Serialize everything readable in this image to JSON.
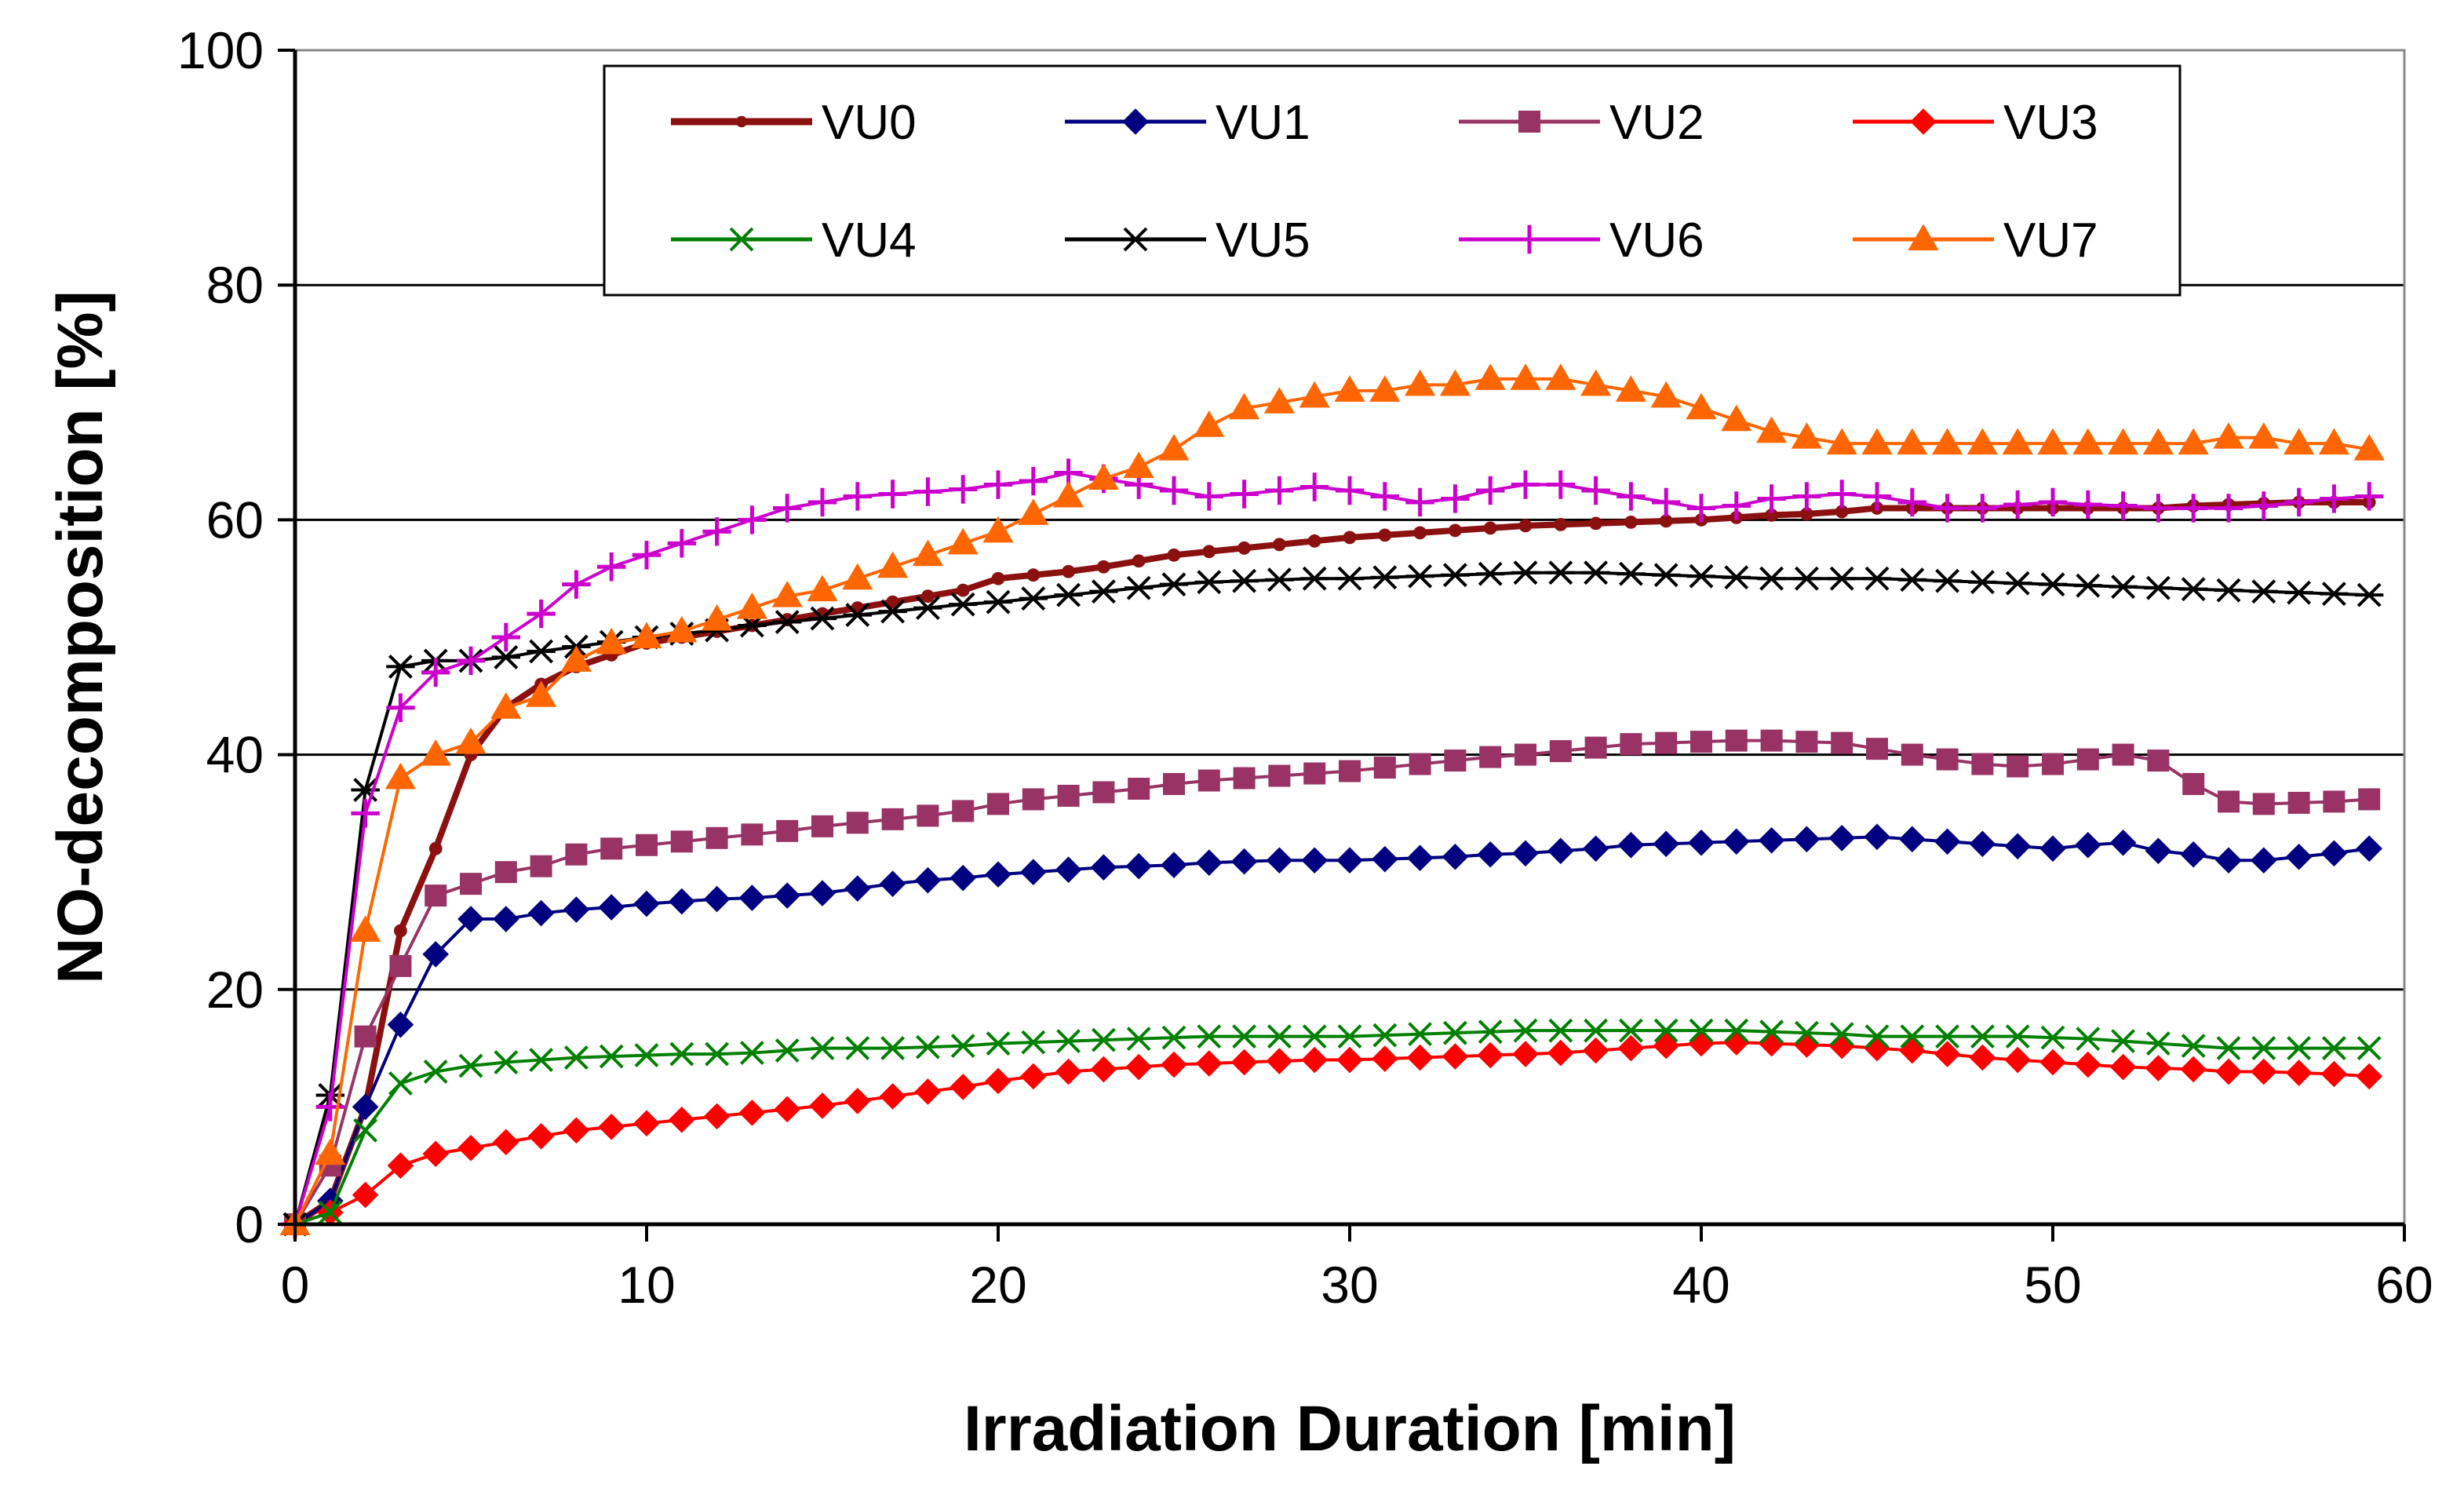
{
  "chart_data": {
    "type": "line",
    "title": "",
    "xlabel": "Irradiation Duration [min]",
    "ylabel": "NO-decomposition [%]",
    "xlim": [
      0,
      60
    ],
    "ylim": [
      0,
      100
    ],
    "xticks": [
      0,
      10,
      20,
      30,
      40,
      50,
      60
    ],
    "yticks": [
      0,
      20,
      40,
      60,
      80,
      100
    ],
    "grid": "horizontal",
    "legend_position": "top-center",
    "x": [
      0,
      1,
      2,
      3,
      4,
      5,
      6,
      7,
      8,
      9,
      10,
      11,
      12,
      13,
      14,
      15,
      16,
      17,
      18,
      19,
      20,
      21,
      22,
      23,
      24,
      25,
      26,
      27,
      28,
      29,
      30,
      31,
      32,
      33,
      34,
      35,
      36,
      37,
      38,
      39,
      40,
      41,
      42,
      43,
      44,
      45,
      46,
      47,
      48,
      49,
      50,
      51,
      52,
      53,
      54,
      55,
      56,
      57,
      58,
      59
    ],
    "series": [
      {
        "name": "VU0",
        "color": "#8B1010",
        "marker": "circle",
        "values": [
          0,
          2,
          10,
          25,
          32,
          40,
          44,
          46,
          47.5,
          48.5,
          49.5,
          50,
          50.5,
          51,
          51.5,
          52,
          52.5,
          53,
          53.5,
          54,
          55,
          55.3,
          55.6,
          56,
          56.5,
          57,
          57.3,
          57.6,
          57.9,
          58.2,
          58.5,
          58.7,
          58.9,
          59.1,
          59.3,
          59.5,
          59.6,
          59.7,
          59.8,
          59.9,
          60,
          60.2,
          60.4,
          60.5,
          60.7,
          61,
          61,
          61,
          61,
          61,
          61,
          61,
          61,
          61,
          61.2,
          61.3,
          61.4,
          61.5,
          61.5,
          61.5
        ]
      },
      {
        "name": "VU1",
        "color": "#000080",
        "marker": "diamond",
        "values": [
          0,
          2,
          10,
          17,
          23,
          26,
          26,
          26.5,
          26.8,
          27,
          27.3,
          27.5,
          27.7,
          27.8,
          28,
          28.2,
          28.6,
          29,
          29.3,
          29.5,
          29.8,
          30,
          30.2,
          30.4,
          30.5,
          30.6,
          30.8,
          30.9,
          31,
          31,
          31,
          31.1,
          31.2,
          31.3,
          31.5,
          31.6,
          31.8,
          32,
          32.3,
          32.4,
          32.5,
          32.6,
          32.7,
          32.8,
          32.9,
          33,
          32.8,
          32.6,
          32.4,
          32.2,
          32,
          32.3,
          32.5,
          31.8,
          31.5,
          31,
          31,
          31.3,
          31.6,
          32
        ]
      },
      {
        "name": "VU2",
        "color": "#993366",
        "marker": "square",
        "values": [
          0,
          5,
          16,
          22,
          28,
          29,
          30,
          30.5,
          31.5,
          32,
          32.3,
          32.6,
          32.9,
          33.2,
          33.5,
          33.9,
          34.2,
          34.5,
          34.8,
          35.2,
          35.8,
          36.2,
          36.5,
          36.8,
          37.1,
          37.5,
          37.8,
          38,
          38.2,
          38.4,
          38.6,
          38.9,
          39.2,
          39.5,
          39.8,
          40,
          40.3,
          40.6,
          40.9,
          41,
          41.1,
          41.2,
          41.2,
          41.1,
          41,
          40.5,
          40,
          39.6,
          39.2,
          39,
          39.2,
          39.6,
          40,
          39.5,
          37.5,
          36,
          35.8,
          35.9,
          36,
          36.2
        ]
      },
      {
        "name": "VU3",
        "color": "#FF0000",
        "marker": "diamond",
        "values": [
          0,
          1,
          2.5,
          5,
          6,
          6.5,
          7,
          7.5,
          8,
          8.3,
          8.6,
          8.9,
          9.2,
          9.5,
          9.8,
          10.1,
          10.5,
          10.9,
          11.3,
          11.7,
          12.2,
          12.6,
          13,
          13.2,
          13.4,
          13.6,
          13.7,
          13.8,
          13.9,
          14,
          14,
          14.1,
          14.2,
          14.3,
          14.4,
          14.5,
          14.6,
          14.8,
          15,
          15.2,
          15.4,
          15.5,
          15.4,
          15.3,
          15.2,
          15,
          14.8,
          14.5,
          14.2,
          14,
          13.8,
          13.6,
          13.4,
          13.3,
          13.2,
          13,
          13,
          12.9,
          12.8,
          12.6
        ]
      },
      {
        "name": "VU4",
        "color": "#008000",
        "marker": "x",
        "values": [
          0,
          1,
          8,
          12,
          13,
          13.5,
          13.8,
          14,
          14.2,
          14.3,
          14.4,
          14.5,
          14.5,
          14.6,
          14.8,
          15,
          15,
          15,
          15.1,
          15.2,
          15.4,
          15.5,
          15.6,
          15.7,
          15.8,
          15.9,
          16,
          16,
          16,
          16,
          16,
          16.1,
          16.2,
          16.3,
          16.4,
          16.5,
          16.5,
          16.5,
          16.5,
          16.5,
          16.5,
          16.5,
          16.4,
          16.3,
          16.2,
          16,
          16,
          16,
          16,
          16,
          15.9,
          15.8,
          15.6,
          15.4,
          15.2,
          15,
          15,
          15,
          15,
          15
        ]
      },
      {
        "name": "VU5",
        "color": "#000000",
        "marker": "asterisk",
        "values": [
          0,
          11,
          37,
          47.5,
          48,
          48,
          48.3,
          48.8,
          49.2,
          49.6,
          50,
          50.3,
          50.6,
          51,
          51.3,
          51.6,
          51.9,
          52.2,
          52.5,
          52.8,
          53,
          53.3,
          53.6,
          53.9,
          54.2,
          54.5,
          54.7,
          54.8,
          54.9,
          55,
          55,
          55.1,
          55.2,
          55.3,
          55.4,
          55.5,
          55.5,
          55.5,
          55.4,
          55.3,
          55.2,
          55.1,
          55,
          55,
          55,
          55,
          54.9,
          54.8,
          54.7,
          54.6,
          54.5,
          54.4,
          54.3,
          54.2,
          54.1,
          54,
          53.9,
          53.8,
          53.7,
          53.6
        ]
      },
      {
        "name": "VU6",
        "color": "#CC00CC",
        "marker": "plus",
        "values": [
          0,
          10,
          35,
          44,
          47,
          48,
          50,
          52,
          54.5,
          56,
          57,
          58,
          59,
          60,
          61,
          61.5,
          62,
          62.2,
          62.4,
          62.6,
          63,
          63.3,
          64,
          63.5,
          63,
          62.5,
          62,
          62.2,
          62.5,
          62.8,
          62.5,
          62,
          61.5,
          61.8,
          62.5,
          63,
          63,
          62.5,
          62,
          61.5,
          61,
          61.2,
          61.8,
          62,
          62.2,
          62,
          61.5,
          61,
          61,
          61.3,
          61.5,
          61.3,
          61.2,
          61,
          61,
          61,
          61.2,
          61.5,
          61.8,
          62
        ]
      },
      {
        "name": "VU7",
        "color": "#FF6600",
        "marker": "triangle",
        "values": [
          0,
          6,
          25,
          38,
          40,
          41,
          44,
          45,
          48,
          49.5,
          50,
          50.5,
          51.5,
          52.5,
          53.5,
          54,
          55,
          56,
          57,
          58,
          59,
          60.5,
          62,
          63.5,
          64.5,
          66,
          68,
          69.5,
          70,
          70.5,
          71,
          71,
          71.5,
          71.5,
          72,
          72,
          72,
          71.5,
          71,
          70.5,
          69.5,
          68.5,
          67.5,
          67,
          66.5,
          66.5,
          66.5,
          66.5,
          66.5,
          66.5,
          66.5,
          66.5,
          66.5,
          66.5,
          66.5,
          67,
          67,
          66.5,
          66.5,
          66
        ]
      }
    ]
  }
}
